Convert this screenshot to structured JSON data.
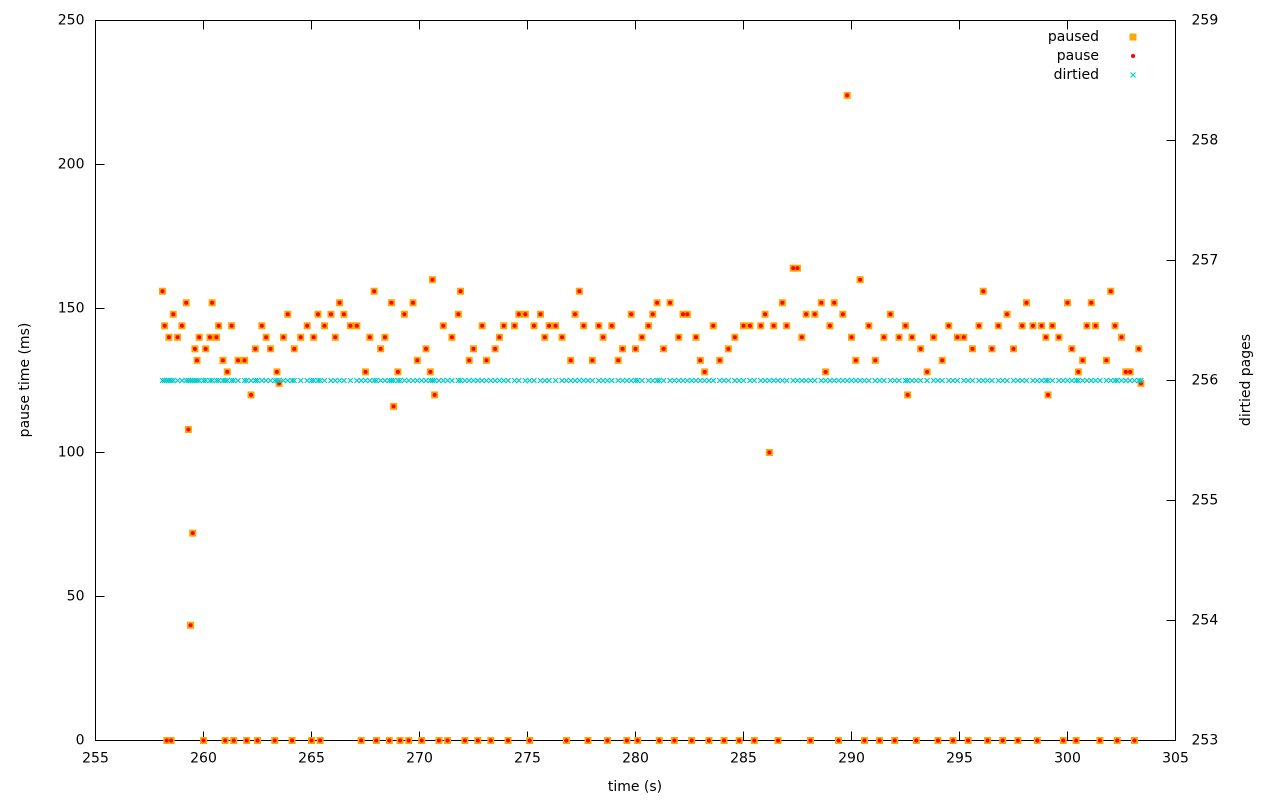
{
  "chart_data": {
    "type": "scatter",
    "xlabel": "time (s)",
    "ylabel": "pause time (ms)",
    "y2label": "dirtied pages",
    "xlim": [
      255,
      305
    ],
    "xticks": [
      255,
      260,
      265,
      270,
      275,
      280,
      285,
      290,
      295,
      300,
      305
    ],
    "ylim": [
      0,
      250
    ],
    "yticks": [
      0,
      50,
      100,
      150,
      200,
      250
    ],
    "y2lim": [
      253,
      259
    ],
    "y2ticks": [
      253,
      254,
      255,
      256,
      257,
      258,
      259
    ],
    "legend": "top-right",
    "x": [
      258.1,
      258.2,
      258.3,
      258.4,
      258.5,
      258.6,
      258.8,
      259.0,
      259.2,
      259.3,
      259.4,
      259.5,
      259.6,
      259.7,
      259.8,
      260.0,
      260.1,
      260.3,
      260.4,
      260.6,
      260.7,
      260.9,
      261.0,
      261.1,
      261.3,
      261.4,
      261.6,
      261.9,
      262.0,
      262.2,
      262.4,
      262.5,
      262.7,
      262.9,
      263.1,
      263.3,
      263.4,
      263.5,
      263.7,
      263.9,
      264.1,
      264.2,
      264.5,
      264.8,
      265.0,
      265.1,
      265.3,
      265.4,
      265.6,
      265.9,
      266.1,
      266.3,
      266.5,
      266.8,
      267.1,
      267.3,
      267.5,
      267.7,
      267.9,
      268.0,
      268.2,
      268.4,
      268.6,
      268.7,
      268.8,
      269.0,
      269.1,
      269.3,
      269.5,
      269.7,
      269.9,
      270.1,
      270.3,
      270.5,
      270.6,
      270.7,
      270.9,
      271.1,
      271.3,
      271.5,
      271.8,
      271.9,
      272.1,
      272.3,
      272.5,
      272.7,
      272.9,
      273.1,
      273.3,
      273.5,
      273.7,
      273.9,
      274.1,
      274.4,
      274.6,
      274.9,
      275.1,
      275.3,
      275.6,
      275.8,
      276.0,
      276.3,
      276.6,
      276.8,
      277.0,
      277.2,
      277.4,
      277.6,
      277.8,
      278.0,
      278.3,
      278.5,
      278.7,
      278.9,
      279.2,
      279.4,
      279.6,
      279.8,
      280.0,
      280.1,
      280.3,
      280.6,
      280.8,
      281.0,
      281.1,
      281.3,
      281.6,
      281.8,
      282.0,
      282.2,
      282.4,
      282.6,
      282.8,
      283.0,
      283.2,
      283.4,
      283.6,
      283.9,
      284.1,
      284.3,
      284.6,
      284.8,
      285.0,
      285.3,
      285.5,
      285.8,
      286.0,
      286.2,
      286.4,
      286.6,
      286.8,
      287.0,
      287.3,
      287.5,
      287.7,
      287.9,
      288.1,
      288.3,
      288.6,
      288.8,
      289.0,
      289.2,
      289.4,
      289.6,
      289.8,
      290.0,
      290.2,
      290.4,
      290.6,
      290.8,
      291.1,
      291.3,
      291.5,
      291.8,
      292.0,
      292.2,
      292.5,
      292.6,
      292.8,
      293.0,
      293.2,
      293.5,
      293.8,
      294.0,
      294.2,
      294.5,
      294.7,
      294.9,
      295.2,
      295.4,
      295.6,
      295.9,
      296.1,
      296.3,
      296.5,
      296.8,
      297.0,
      297.2,
      297.5,
      297.7,
      297.9,
      298.1,
      298.4,
      298.6,
      298.8,
      299.0,
      299.1,
      299.3,
      299.6,
      299.8,
      300.0,
      300.2,
      300.4,
      300.5,
      300.7,
      300.9,
      301.1,
      301.3,
      301.5,
      301.8,
      302.0,
      302.2,
      302.3,
      302.5,
      302.7,
      302.9,
      303.1,
      303.3,
      303.4
    ],
    "series": [
      {
        "name": "paused",
        "color": "#ffa500",
        "marker": "square",
        "values": [
          156,
          144,
          0,
          140,
          0,
          148,
          140,
          144,
          152,
          108,
          40,
          72,
          136,
          132,
          140,
          0,
          136,
          140,
          152,
          140,
          144,
          132,
          0,
          128,
          144,
          0,
          132,
          132,
          0,
          120,
          136,
          0,
          144,
          140,
          136,
          0,
          128,
          124,
          140,
          148,
          0,
          136,
          140,
          144,
          0,
          140,
          148,
          0,
          144,
          148,
          140,
          152,
          148,
          144,
          144,
          0,
          128,
          140,
          156,
          0,
          136,
          140,
          0,
          152,
          116,
          128,
          0,
          148,
          0,
          152,
          132,
          0,
          136,
          128,
          160,
          120,
          0,
          144,
          0,
          140,
          148,
          156,
          0,
          132,
          136,
          0,
          144,
          132,
          0,
          136,
          140,
          144,
          0,
          144,
          148,
          148,
          0,
          144,
          148,
          140,
          144,
          144,
          140,
          0,
          132,
          148,
          156,
          144,
          0,
          132,
          144,
          140,
          0,
          144,
          132,
          136,
          0,
          148,
          136,
          0,
          140,
          144,
          148,
          152,
          0,
          136,
          152,
          0,
          140,
          148,
          148,
          0,
          140,
          132,
          128,
          0,
          144,
          132,
          0,
          136,
          140,
          0,
          144,
          144,
          0,
          144,
          148,
          100,
          144,
          0,
          152,
          144,
          164,
          164,
          140,
          148,
          0,
          148,
          152,
          128,
          144,
          152,
          0,
          148,
          224,
          140,
          132,
          160,
          0,
          144,
          132,
          0,
          140,
          148,
          0,
          140,
          144,
          120,
          140,
          0,
          136,
          128,
          140,
          0,
          132,
          144,
          0,
          140,
          140,
          0,
          136,
          144,
          156,
          0,
          136,
          144,
          0,
          148,
          136,
          0,
          144,
          152,
          144,
          0,
          144,
          140,
          120,
          144,
          140,
          0,
          152,
          136,
          0,
          128,
          132,
          144,
          152,
          144,
          0,
          132,
          156,
          144,
          0,
          140,
          128,
          128,
          0,
          136,
          124
        ]
      },
      {
        "name": "pause",
        "color": "#ff0000",
        "marker": "circle",
        "values": [
          156,
          144,
          0,
          140,
          0,
          148,
          140,
          144,
          152,
          108,
          40,
          72,
          136,
          132,
          140,
          0,
          136,
          140,
          152,
          140,
          144,
          132,
          0,
          128,
          144,
          0,
          132,
          132,
          0,
          120,
          136,
          0,
          144,
          140,
          136,
          0,
          128,
          124,
          140,
          148,
          0,
          136,
          140,
          144,
          0,
          140,
          148,
          0,
          144,
          148,
          140,
          152,
          148,
          144,
          144,
          0,
          128,
          140,
          156,
          0,
          136,
          140,
          0,
          152,
          116,
          128,
          0,
          148,
          0,
          152,
          132,
          0,
          136,
          128,
          160,
          120,
          0,
          144,
          0,
          140,
          148,
          156,
          0,
          132,
          136,
          0,
          144,
          132,
          0,
          136,
          140,
          144,
          0,
          144,
          148,
          148,
          0,
          144,
          148,
          140,
          144,
          144,
          140,
          0,
          132,
          148,
          156,
          144,
          0,
          132,
          144,
          140,
          0,
          144,
          132,
          136,
          0,
          148,
          136,
          0,
          140,
          144,
          148,
          152,
          0,
          136,
          152,
          0,
          140,
          148,
          148,
          0,
          140,
          132,
          128,
          0,
          144,
          132,
          0,
          136,
          140,
          0,
          144,
          144,
          0,
          144,
          148,
          100,
          144,
          0,
          152,
          144,
          164,
          164,
          140,
          148,
          0,
          148,
          152,
          128,
          144,
          152,
          0,
          148,
          224,
          140,
          132,
          160,
          0,
          144,
          132,
          0,
          140,
          148,
          0,
          140,
          144,
          120,
          140,
          0,
          136,
          128,
          140,
          0,
          132,
          144,
          0,
          140,
          140,
          0,
          136,
          144,
          156,
          0,
          136,
          144,
          0,
          148,
          136,
          0,
          144,
          152,
          144,
          0,
          144,
          140,
          120,
          144,
          140,
          0,
          152,
          136,
          0,
          128,
          132,
          144,
          152,
          144,
          0,
          132,
          156,
          144,
          0,
          140,
          128,
          128,
          0,
          136,
          124
        ]
      },
      {
        "name": "dirtied",
        "color": "#00cccc",
        "marker": "x",
        "axis": "y2",
        "values": [
          256,
          256,
          256,
          256,
          256,
          256,
          256,
          256,
          256,
          256,
          256,
          256,
          256,
          256,
          256,
          256,
          256,
          256,
          256,
          256,
          256,
          256,
          256,
          256,
          256,
          256,
          256,
          256,
          256,
          256,
          256,
          256,
          256,
          256,
          256,
          256,
          256,
          256,
          256,
          256,
          256,
          256,
          256,
          256,
          256,
          256,
          256,
          256,
          256,
          256,
          256,
          256,
          256,
          256,
          256,
          256,
          256,
          256,
          256,
          256,
          256,
          256,
          256,
          256,
          256,
          256,
          256,
          256,
          256,
          256,
          256,
          256,
          256,
          256,
          256,
          256,
          256,
          256,
          256,
          256,
          256,
          256,
          256,
          256,
          256,
          256,
          256,
          256,
          256,
          256,
          256,
          256,
          256,
          256,
          256,
          256,
          256,
          256,
          256,
          256,
          256,
          256,
          256,
          256,
          256,
          256,
          256,
          256,
          256,
          256,
          256,
          256,
          256,
          256,
          256,
          256,
          256,
          256,
          256,
          256,
          256,
          256,
          256,
          256,
          256,
          256,
          256,
          256,
          256,
          256,
          256,
          256,
          256,
          256,
          256,
          256,
          256,
          256,
          256,
          256,
          256,
          256,
          256,
          256,
          256,
          256,
          256,
          256,
          256,
          256,
          256,
          256,
          256,
          256,
          256,
          256,
          256,
          256,
          256,
          256,
          256,
          256,
          256,
          256,
          256,
          256,
          256,
          256,
          256,
          256,
          256,
          256,
          256,
          256,
          256,
          256,
          256,
          256,
          256,
          256,
          256,
          256,
          256,
          256,
          256,
          256,
          256,
          256,
          256,
          256,
          256,
          256,
          256,
          256,
          256,
          256,
          256,
          256,
          256,
          256,
          256,
          256,
          256,
          256,
          256,
          256,
          256,
          256,
          256,
          256,
          256,
          256,
          256,
          256,
          256,
          256,
          256,
          256,
          256,
          256,
          256,
          256,
          256,
          256,
          256,
          256,
          256,
          256,
          256
        ]
      }
    ]
  }
}
